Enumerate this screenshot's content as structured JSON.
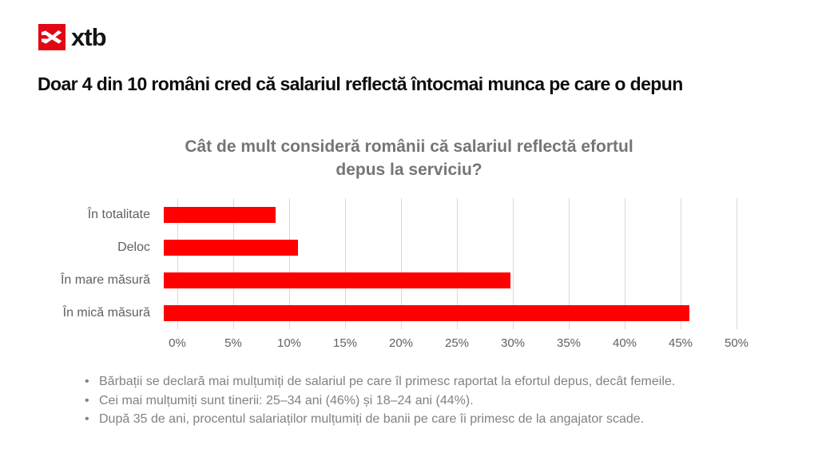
{
  "brand": {
    "logo_text": "xtb",
    "logo_color": "#e30613",
    "logo_icon": "xtb-swallow-icon"
  },
  "page_title": "Doar 4 din 10 români cred că salariul reflectă întocmai munca pe care o depun",
  "chart_data": {
    "type": "bar",
    "orientation": "horizontal",
    "title": "Cât de mult consideră românii că salariul reflectă efortul depus la serviciu?",
    "title_lines": [
      "Cât de mult consideră românii că salariul reflectă efortul",
      "depus la serviciu?"
    ],
    "categories": [
      "În totalitate",
      "Deloc",
      "În mare măsură",
      "În mică măsură"
    ],
    "values": [
      10,
      12,
      31,
      47
    ],
    "unit": "%",
    "xlim": [
      0,
      50
    ],
    "x_tick_step": 5,
    "x_tick_labels": [
      "0%",
      "5%",
      "10%",
      "15%",
      "20%",
      "25%",
      "30%",
      "35%",
      "40%",
      "45%",
      "50%"
    ],
    "bar_color": "#ff0000",
    "grid": true,
    "legend": "none"
  },
  "bullets": [
    "Bărbații se declară mai mulțumiți de salariul pe care îl primesc raportat la efortul depus, decât femeile.",
    "Cei mai mulțumiți sunt tinerii: 25–34 ani (46%) și 18–24 ani (44%).",
    "După 35 de ani, procentul salariaților mulțumiți de banii pe care îi primesc de la angajator scade."
  ],
  "colors": {
    "bar": "#ff0000",
    "brand_red": "#e30613",
    "axis_text": "#616161",
    "title_text": "#0d0d0d",
    "chart_title_text": "#757575",
    "bullet_text": "#828282",
    "gridline": "#d9d9d9"
  }
}
